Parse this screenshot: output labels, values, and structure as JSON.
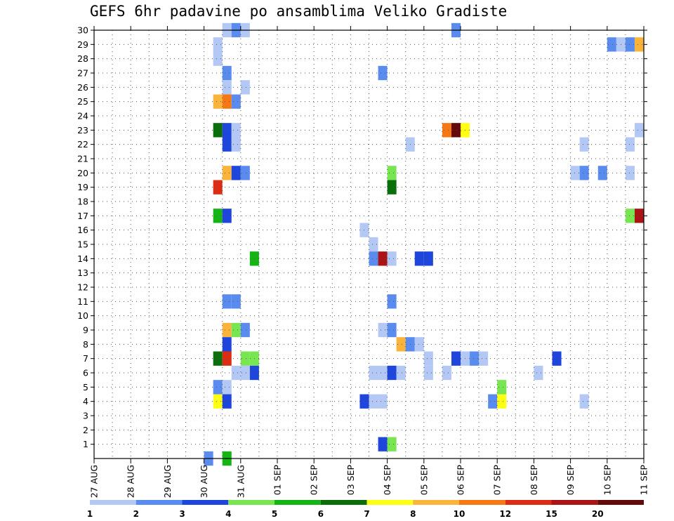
{
  "chart_data": {
    "type": "heatmap",
    "title": "GEFS 6hr padavine po ansamblima Veliko Gradiste",
    "xlabel": "",
    "ylabel": "",
    "x_axis": {
      "unit": "days since 27 AUG",
      "range": [
        0,
        15
      ],
      "tick_labels": [
        "27 AUG",
        "28 AUG",
        "29 AUG",
        "30 AUG",
        "31 AUG",
        "01 SEP",
        "02 SEP",
        "03 SEP",
        "04 SEP",
        "05 SEP",
        "06 SEP",
        "07 SEP",
        "08 SEP",
        "09 SEP",
        "10 SEP",
        "11 SEP"
      ]
    },
    "y_axis": {
      "range": [
        0,
        30
      ],
      "ticks": [
        1,
        2,
        3,
        4,
        5,
        6,
        7,
        8,
        9,
        10,
        11,
        12,
        13,
        14,
        15,
        16,
        17,
        18,
        19,
        20,
        21,
        22,
        23,
        24,
        25,
        26,
        27,
        28,
        29,
        30
      ]
    },
    "grid": true,
    "colorbar": {
      "placement": "bottom",
      "bounds": [
        "1",
        "2",
        "3",
        "4",
        "5",
        "6",
        "7",
        "8",
        "10",
        "12",
        "15",
        "20"
      ],
      "colors": [
        "#b4c8f5",
        "#5a8cf0",
        "#1e46dc",
        "#78e650",
        "#14b414",
        "#0a6e0a",
        "#ffff14",
        "#fab43c",
        "#f57814",
        "#dc2d14",
        "#aa1414",
        "#640a0a"
      ]
    },
    "cell_width_days": 0.25,
    "cells": [
      {
        "x": 3.5,
        "y": 30,
        "c": 0
      },
      {
        "x": 3.75,
        "y": 30,
        "c": 1
      },
      {
        "x": 4.0,
        "y": 30,
        "c": 0
      },
      {
        "x": 9.75,
        "y": 30,
        "c": 1
      },
      {
        "x": 3.25,
        "y": 29,
        "c": 0
      },
      {
        "x": 14.0,
        "y": 29,
        "c": 1
      },
      {
        "x": 14.25,
        "y": 29,
        "c": 0
      },
      {
        "x": 14.5,
        "y": 29,
        "c": 1
      },
      {
        "x": 14.75,
        "y": 29,
        "c": 7
      },
      {
        "x": 3.25,
        "y": 28,
        "c": 0
      },
      {
        "x": 3.5,
        "y": 27,
        "c": 1
      },
      {
        "x": 7.75,
        "y": 27,
        "c": 1
      },
      {
        "x": 3.5,
        "y": 26,
        "c": 0
      },
      {
        "x": 4.0,
        "y": 26,
        "c": 0
      },
      {
        "x": 3.25,
        "y": 25,
        "c": 7
      },
      {
        "x": 3.5,
        "y": 25,
        "c": 8
      },
      {
        "x": 3.75,
        "y": 25,
        "c": 1
      },
      {
        "x": 3.25,
        "y": 23,
        "c": 5
      },
      {
        "x": 3.5,
        "y": 23,
        "c": 2
      },
      {
        "x": 3.75,
        "y": 23,
        "c": 0
      },
      {
        "x": 9.5,
        "y": 23,
        "c": 8
      },
      {
        "x": 9.75,
        "y": 23,
        "c": 11
      },
      {
        "x": 10.0,
        "y": 23,
        "c": 6
      },
      {
        "x": 14.75,
        "y": 23,
        "c": 0
      },
      {
        "x": 3.5,
        "y": 22,
        "c": 2
      },
      {
        "x": 3.75,
        "y": 22,
        "c": 0
      },
      {
        "x": 8.5,
        "y": 22,
        "c": 0
      },
      {
        "x": 13.25,
        "y": 22,
        "c": 0
      },
      {
        "x": 14.5,
        "y": 22,
        "c": 0
      },
      {
        "x": 3.5,
        "y": 20,
        "c": 7
      },
      {
        "x": 3.75,
        "y": 20,
        "c": 2
      },
      {
        "x": 4.0,
        "y": 20,
        "c": 1
      },
      {
        "x": 8.0,
        "y": 20,
        "c": 3
      },
      {
        "x": 13.0,
        "y": 20,
        "c": 0
      },
      {
        "x": 13.25,
        "y": 20,
        "c": 1
      },
      {
        "x": 13.75,
        "y": 20,
        "c": 1
      },
      {
        "x": 14.5,
        "y": 20,
        "c": 0
      },
      {
        "x": 3.25,
        "y": 19,
        "c": 9
      },
      {
        "x": 8.0,
        "y": 19,
        "c": 5
      },
      {
        "x": 3.25,
        "y": 17,
        "c": 4
      },
      {
        "x": 3.5,
        "y": 17,
        "c": 2
      },
      {
        "x": 14.5,
        "y": 17,
        "c": 3
      },
      {
        "x": 14.75,
        "y": 17,
        "c": 10
      },
      {
        "x": 7.25,
        "y": 16,
        "c": 0
      },
      {
        "x": 7.5,
        "y": 15,
        "c": 0
      },
      {
        "x": 4.25,
        "y": 14,
        "c": 4
      },
      {
        "x": 7.5,
        "y": 14,
        "c": 1
      },
      {
        "x": 7.75,
        "y": 14,
        "c": 10
      },
      {
        "x": 8.0,
        "y": 14,
        "c": 0
      },
      {
        "x": 8.75,
        "y": 14,
        "c": 2
      },
      {
        "x": 9.0,
        "y": 14,
        "c": 2
      },
      {
        "x": 3.5,
        "y": 11,
        "c": 1
      },
      {
        "x": 3.75,
        "y": 11,
        "c": 1
      },
      {
        "x": 8.0,
        "y": 11,
        "c": 1
      },
      {
        "x": 3.5,
        "y": 9,
        "c": 7
      },
      {
        "x": 3.75,
        "y": 9,
        "c": 3
      },
      {
        "x": 4.0,
        "y": 9,
        "c": 1
      },
      {
        "x": 7.75,
        "y": 9,
        "c": 0
      },
      {
        "x": 8.0,
        "y": 9,
        "c": 1
      },
      {
        "x": 3.5,
        "y": 8,
        "c": 2
      },
      {
        "x": 8.25,
        "y": 8,
        "c": 7
      },
      {
        "x": 8.5,
        "y": 8,
        "c": 1
      },
      {
        "x": 8.75,
        "y": 8,
        "c": 0
      },
      {
        "x": 3.25,
        "y": 7,
        "c": 5
      },
      {
        "x": 3.5,
        "y": 7,
        "c": 9
      },
      {
        "x": 4.0,
        "y": 7,
        "c": 3
      },
      {
        "x": 4.25,
        "y": 7,
        "c": 3
      },
      {
        "x": 9.0,
        "y": 7,
        "c": 0
      },
      {
        "x": 9.75,
        "y": 7,
        "c": 2
      },
      {
        "x": 10.0,
        "y": 7,
        "c": 0
      },
      {
        "x": 10.25,
        "y": 7,
        "c": 1
      },
      {
        "x": 10.5,
        "y": 7,
        "c": 0
      },
      {
        "x": 12.5,
        "y": 7,
        "c": 2
      },
      {
        "x": 3.75,
        "y": 6,
        "c": 0
      },
      {
        "x": 4.0,
        "y": 6,
        "c": 0
      },
      {
        "x": 4.25,
        "y": 6,
        "c": 2
      },
      {
        "x": 7.5,
        "y": 6,
        "c": 0
      },
      {
        "x": 7.75,
        "y": 6,
        "c": 0
      },
      {
        "x": 8.0,
        "y": 6,
        "c": 2
      },
      {
        "x": 8.25,
        "y": 6,
        "c": 0
      },
      {
        "x": 9.0,
        "y": 6,
        "c": 0
      },
      {
        "x": 9.5,
        "y": 6,
        "c": 0
      },
      {
        "x": 12.0,
        "y": 6,
        "c": 0
      },
      {
        "x": 3.25,
        "y": 5,
        "c": 1
      },
      {
        "x": 3.5,
        "y": 5,
        "c": 0
      },
      {
        "x": 11.0,
        "y": 5,
        "c": 3
      },
      {
        "x": 3.25,
        "y": 4,
        "c": 6
      },
      {
        "x": 3.5,
        "y": 4,
        "c": 2
      },
      {
        "x": 7.25,
        "y": 4,
        "c": 2
      },
      {
        "x": 7.5,
        "y": 4,
        "c": 0
      },
      {
        "x": 7.75,
        "y": 4,
        "c": 0
      },
      {
        "x": 10.75,
        "y": 4,
        "c": 1
      },
      {
        "x": 11.0,
        "y": 4,
        "c": 6
      },
      {
        "x": 13.25,
        "y": 4,
        "c": 0
      },
      {
        "x": 7.75,
        "y": 1,
        "c": 2
      },
      {
        "x": 8.0,
        "y": 1,
        "c": 3
      },
      {
        "x": 3.0,
        "y": 0,
        "c": 1
      },
      {
        "x": 3.5,
        "y": 0,
        "c": 4
      }
    ]
  }
}
